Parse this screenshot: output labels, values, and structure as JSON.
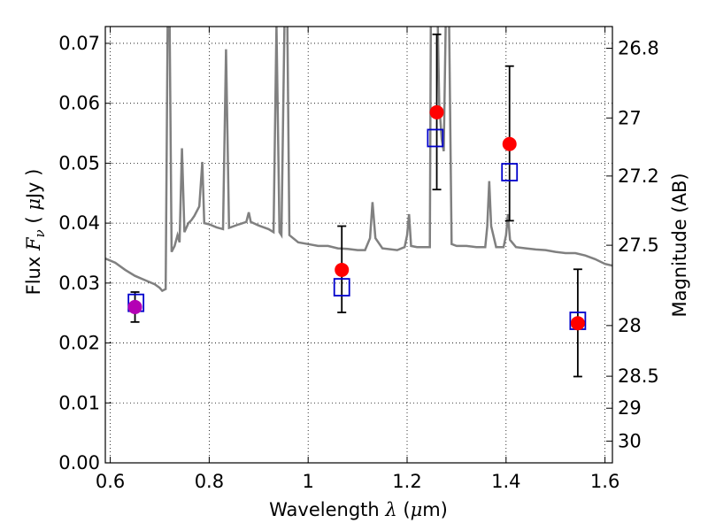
{
  "chart_data": {
    "type": "scatter",
    "xlabel": "Wavelength  λ (μm)",
    "xlabel_parts": [
      "Wavelength  ",
      "λ",
      " (",
      "μ",
      "m)"
    ],
    "ylabel": "Flux  Fν  ( μJy )",
    "ylabel_parts": [
      "Flux  ",
      "F",
      "ν",
      "  ( ",
      "μ",
      "Jy )"
    ],
    "y2label": "Magnitude (AB)",
    "xlim": [
      0.59,
      1.615
    ],
    "ylim": [
      0.0,
      0.0728
    ],
    "grid": true,
    "grid_style": "dotted",
    "x_ticks": [
      {
        "value": 0.6,
        "label": "0.6"
      },
      {
        "value": 0.8,
        "label": "0.8"
      },
      {
        "value": 1.0,
        "label": "1"
      },
      {
        "value": 1.2,
        "label": "1.2"
      },
      {
        "value": 1.4,
        "label": "1.4"
      },
      {
        "value": 1.6,
        "label": "1.6"
      }
    ],
    "y_ticks": [
      {
        "value": 0.0,
        "label": "0.00"
      },
      {
        "value": 0.01,
        "label": "0.01"
      },
      {
        "value": 0.02,
        "label": "0.02"
      },
      {
        "value": 0.03,
        "label": "0.03"
      },
      {
        "value": 0.04,
        "label": "0.04"
      },
      {
        "value": 0.05,
        "label": "0.05"
      },
      {
        "value": 0.06,
        "label": "0.06"
      },
      {
        "value": 0.07,
        "label": "0.07"
      }
    ],
    "y2_ticks": [
      {
        "value": 26.8,
        "label": "26.8"
      },
      {
        "value": 27.0,
        "label": "27"
      },
      {
        "value": 27.2,
        "label": "27.2"
      },
      {
        "value": 27.5,
        "label": "27.5"
      },
      {
        "value": 28.0,
        "label": "28"
      },
      {
        "value": 28.5,
        "label": "28.5"
      },
      {
        "value": 29.0,
        "label": "29"
      },
      {
        "value": 30.0,
        "label": "30"
      }
    ],
    "model_spectrum": {
      "color": "#808080",
      "points": [
        [
          0.59,
          0.0341
        ],
        [
          0.61,
          0.0334
        ],
        [
          0.63,
          0.0322
        ],
        [
          0.65,
          0.0312
        ],
        [
          0.67,
          0.0305
        ],
        [
          0.69,
          0.0298
        ],
        [
          0.7,
          0.0292
        ],
        [
          0.705,
          0.0287
        ],
        [
          0.712,
          0.029
        ],
        [
          0.716,
          0.073
        ],
        [
          0.72,
          0.073
        ],
        [
          0.724,
          0.0352
        ],
        [
          0.73,
          0.0362
        ],
        [
          0.736,
          0.038
        ],
        [
          0.74,
          0.0368
        ],
        [
          0.745,
          0.0525
        ],
        [
          0.75,
          0.0385
        ],
        [
          0.758,
          0.04
        ],
        [
          0.764,
          0.0405
        ],
        [
          0.77,
          0.0412
        ],
        [
          0.78,
          0.0428
        ],
        [
          0.786,
          0.0502
        ],
        [
          0.79,
          0.04
        ],
        [
          0.8,
          0.0398
        ],
        [
          0.815,
          0.0393
        ],
        [
          0.828,
          0.039
        ],
        [
          0.834,
          0.069
        ],
        [
          0.84,
          0.0392
        ],
        [
          0.86,
          0.0398
        ],
        [
          0.875,
          0.0402
        ],
        [
          0.88,
          0.0418
        ],
        [
          0.884,
          0.0402
        ],
        [
          0.9,
          0.0396
        ],
        [
          0.92,
          0.039
        ],
        [
          0.93,
          0.0385
        ],
        [
          0.936,
          0.073
        ],
        [
          0.942,
          0.0385
        ],
        [
          0.946,
          0.038
        ],
        [
          0.952,
          0.073
        ],
        [
          0.958,
          0.073
        ],
        [
          0.962,
          0.038
        ],
        [
          0.98,
          0.0368
        ],
        [
          1.0,
          0.0365
        ],
        [
          1.02,
          0.0362
        ],
        [
          1.04,
          0.0362
        ],
        [
          1.06,
          0.0358
        ],
        [
          1.08,
          0.0357
        ],
        [
          1.1,
          0.0355
        ],
        [
          1.115,
          0.0355
        ],
        [
          1.125,
          0.0375
        ],
        [
          1.13,
          0.0435
        ],
        [
          1.136,
          0.0375
        ],
        [
          1.15,
          0.0358
        ],
        [
          1.18,
          0.0355
        ],
        [
          1.195,
          0.036
        ],
        [
          1.2,
          0.038
        ],
        [
          1.204,
          0.0415
        ],
        [
          1.208,
          0.0362
        ],
        [
          1.22,
          0.036
        ],
        [
          1.24,
          0.036
        ],
        [
          1.246,
          0.036
        ],
        [
          1.248,
          0.073
        ],
        [
          1.262,
          0.073
        ],
        [
          1.265,
          0.06
        ],
        [
          1.27,
          0.054
        ],
        [
          1.274,
          0.052
        ],
        [
          1.278,
          0.073
        ],
        [
          1.285,
          0.073
        ],
        [
          1.29,
          0.0365
        ],
        [
          1.3,
          0.0362
        ],
        [
          1.32,
          0.0362
        ],
        [
          1.34,
          0.036
        ],
        [
          1.358,
          0.036
        ],
        [
          1.362,
          0.0395
        ],
        [
          1.366,
          0.047
        ],
        [
          1.37,
          0.0395
        ],
        [
          1.38,
          0.036
        ],
        [
          1.395,
          0.036
        ],
        [
          1.4,
          0.038
        ],
        [
          1.404,
          0.0415
        ],
        [
          1.408,
          0.0372
        ],
        [
          1.42,
          0.036
        ],
        [
          1.44,
          0.0358
        ],
        [
          1.46,
          0.0356
        ],
        [
          1.48,
          0.0355
        ],
        [
          1.5,
          0.0352
        ],
        [
          1.52,
          0.035
        ],
        [
          1.54,
          0.035
        ],
        [
          1.56,
          0.0346
        ],
        [
          1.58,
          0.034
        ],
        [
          1.6,
          0.0332
        ],
        [
          1.615,
          0.0329
        ]
      ]
    },
    "observed": [
      {
        "x": 0.65,
        "y": 0.026,
        "yerr_low": 0.0235,
        "yerr_high": 0.0285,
        "color": "#b400b4"
      },
      {
        "x": 1.068,
        "y": 0.0322,
        "yerr_low": 0.0251,
        "yerr_high": 0.0395,
        "color": "#ff0000"
      },
      {
        "x": 1.26,
        "y": 0.0585,
        "yerr_low": 0.0456,
        "yerr_high": 0.0715,
        "color": "#ff0000"
      },
      {
        "x": 1.407,
        "y": 0.0532,
        "yerr_low": 0.0404,
        "yerr_high": 0.0662,
        "color": "#ff0000"
      },
      {
        "x": 1.545,
        "y": 0.0233,
        "yerr_low": 0.0144,
        "yerr_high": 0.0323,
        "color": "#ff0000"
      }
    ],
    "model_photometry": {
      "color": "#0000cc",
      "points": [
        {
          "x": 0.652,
          "y": 0.0267
        },
        {
          "x": 1.068,
          "y": 0.0293
        },
        {
          "x": 1.257,
          "y": 0.0542
        },
        {
          "x": 1.407,
          "y": 0.0485
        },
        {
          "x": 1.545,
          "y": 0.0237
        }
      ]
    }
  }
}
